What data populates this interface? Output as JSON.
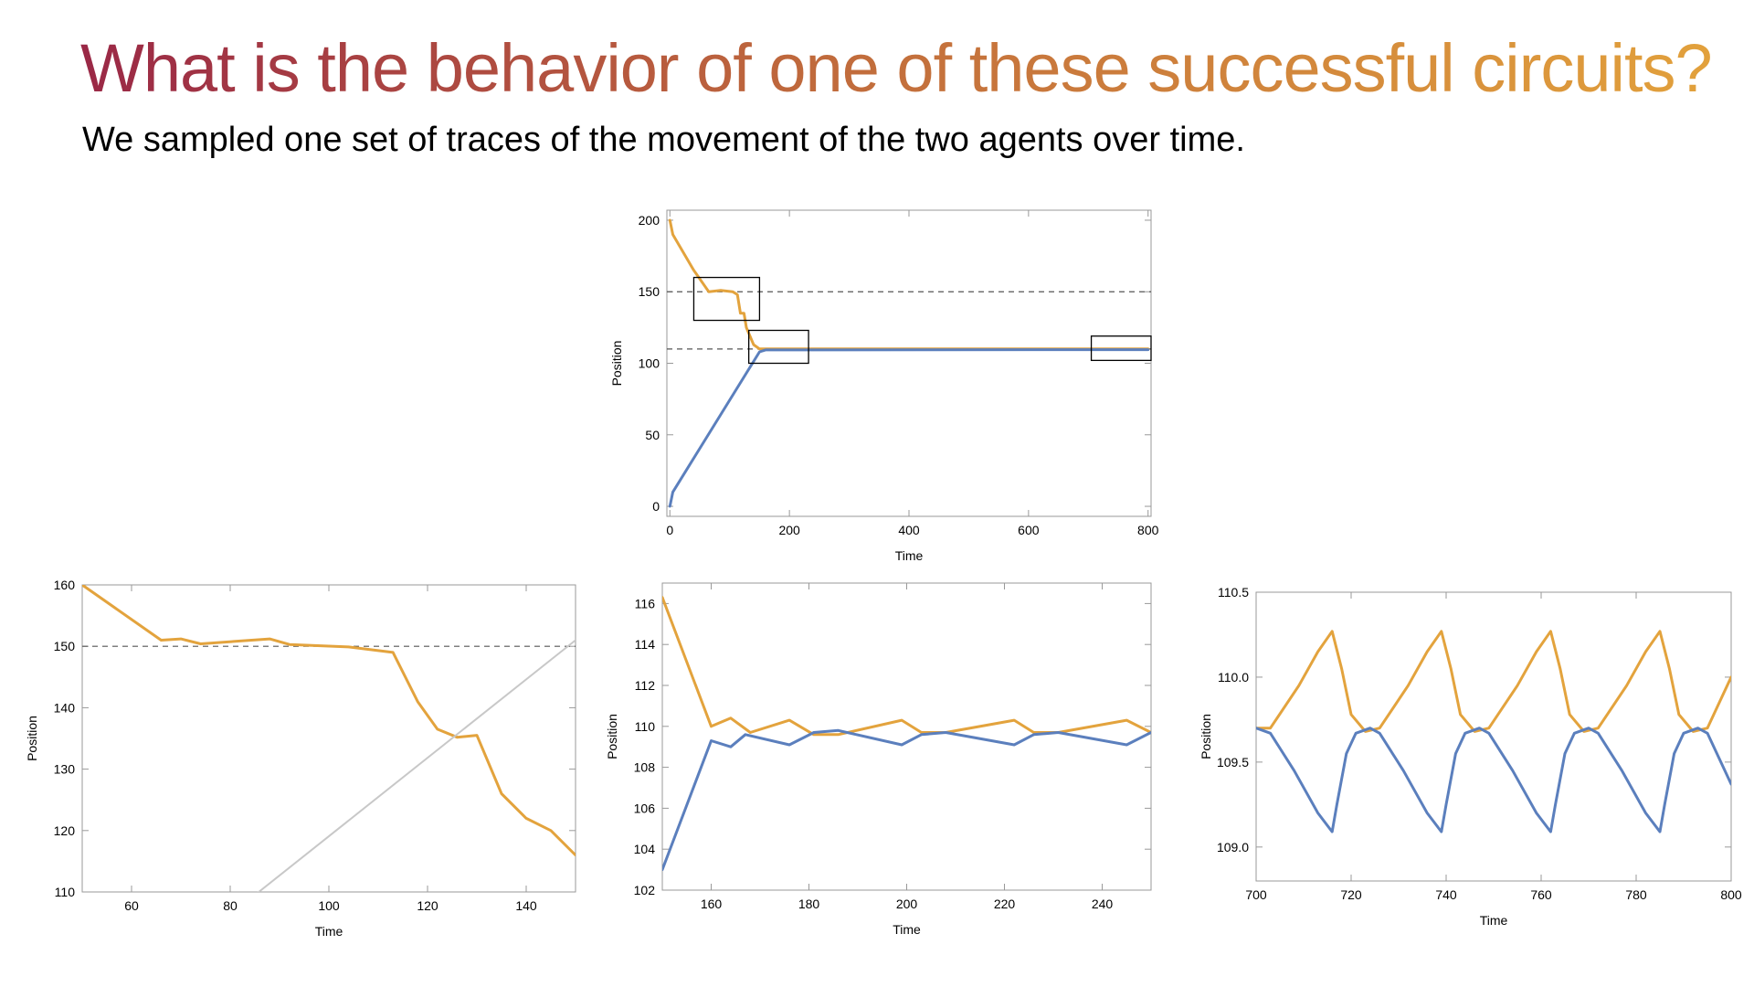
{
  "slide": {
    "title": "What is the behavior of one of these successful circuits?",
    "subtitle": "We sampled one set of traces of the movement of the two agents over time."
  },
  "colors": {
    "orange": "#e3a33d",
    "blue": "#5b7fbd",
    "gray": "#c8c8c8",
    "dashed": "#555555"
  },
  "chart_data": [
    {
      "type": "line",
      "xlabel": "Time",
      "ylabel": "Position",
      "xlim": [
        -5,
        805
      ],
      "ylim": [
        -7,
        207
      ],
      "xticks": [
        "0",
        "200",
        "400",
        "600",
        "800"
      ],
      "xtick_values": [
        0,
        200,
        400,
        600,
        800
      ],
      "yticks": [
        "0",
        "50",
        "100",
        "150",
        "200"
      ],
      "ytick_values": [
        0,
        50,
        100,
        150,
        200
      ],
      "hlines": [
        150,
        110
      ],
      "zoom_boxes": [
        {
          "x": [
            40,
            150
          ],
          "y": [
            130,
            160
          ]
        },
        {
          "x": [
            132,
            232
          ],
          "y": [
            100,
            123
          ]
        },
        {
          "x": [
            705,
            805
          ],
          "y": [
            102,
            119
          ]
        }
      ],
      "series": [
        {
          "color": "orange",
          "points": [
            [
              0,
              200
            ],
            [
              5,
              190
            ],
            [
              40,
              165
            ],
            [
              65,
              150
            ],
            [
              85,
              151
            ],
            [
              105,
              150
            ],
            [
              113,
              148
            ],
            [
              118,
              135
            ],
            [
              124,
              135
            ],
            [
              128,
              125
            ],
            [
              140,
              113
            ],
            [
              150,
              110
            ],
            [
              800,
              110
            ]
          ]
        },
        {
          "color": "blue",
          "points": [
            [
              0,
              0
            ],
            [
              5,
              10
            ],
            [
              150,
              108
            ],
            [
              160,
              109.3
            ],
            [
              800,
              109.5
            ]
          ]
        }
      ]
    },
    {
      "type": "line",
      "xlabel": "Time",
      "ylabel": "Position",
      "xlim": [
        50,
        150
      ],
      "ylim": [
        110,
        160
      ],
      "xticks": [
        "60",
        "80",
        "100",
        "120",
        "140"
      ],
      "xtick_values": [
        60,
        80,
        100,
        120,
        140
      ],
      "yticks": [
        "110",
        "120",
        "130",
        "140",
        "150",
        "160"
      ],
      "ytick_values": [
        110,
        120,
        130,
        140,
        150,
        160
      ],
      "hlines": [
        150
      ],
      "series": [
        {
          "color": "orange",
          "points": [
            [
              50,
              160
            ],
            [
              66,
              151
            ],
            [
              70,
              151.2
            ],
            [
              74,
              150.4
            ],
            [
              88,
              151.2
            ],
            [
              92,
              150.3
            ],
            [
              104,
              149.9
            ],
            [
              113,
              149
            ],
            [
              118,
              141
            ],
            [
              122,
              136.5
            ],
            [
              126,
              135.2
            ],
            [
              130,
              135.5
            ],
            [
              135,
              126
            ],
            [
              140,
              122
            ],
            [
              145,
              120
            ],
            [
              150,
              116
            ]
          ]
        },
        {
          "color": "gray",
          "points": [
            [
              85,
              109.5
            ],
            [
              150,
              151
            ]
          ]
        }
      ]
    },
    {
      "type": "line",
      "xlabel": "Time",
      "ylabel": "Position",
      "xlim": [
        150,
        250
      ],
      "ylim": [
        102,
        117
      ],
      "xticks": [
        "160",
        "180",
        "200",
        "220",
        "240"
      ],
      "xtick_values": [
        160,
        180,
        200,
        220,
        240
      ],
      "yticks": [
        "102",
        "104",
        "106",
        "108",
        "110",
        "112",
        "114",
        "116"
      ],
      "ytick_values": [
        102,
        104,
        106,
        108,
        110,
        112,
        114,
        116
      ],
      "hlines": [],
      "series": [
        {
          "color": "orange",
          "points": [
            [
              150,
              116.3
            ],
            [
              160,
              110
            ],
            [
              164,
              110.4
            ],
            [
              168,
              109.7
            ],
            [
              176,
              110.3
            ],
            [
              181,
              109.6
            ],
            [
              186,
              109.6
            ],
            [
              199,
              110.3
            ],
            [
              203,
              109.7
            ],
            [
              208,
              109.7
            ],
            [
              222,
              110.3
            ],
            [
              226,
              109.7
            ],
            [
              231,
              109.7
            ],
            [
              245,
              110.3
            ],
            [
              250,
              109.7
            ]
          ]
        },
        {
          "color": "blue",
          "points": [
            [
              150,
              103
            ],
            [
              160,
              109.3
            ],
            [
              164,
              109
            ],
            [
              167,
              109.6
            ],
            [
              176,
              109.1
            ],
            [
              181,
              109.7
            ],
            [
              186,
              109.8
            ],
            [
              199,
              109.1
            ],
            [
              203,
              109.6
            ],
            [
              208,
              109.7
            ],
            [
              222,
              109.1
            ],
            [
              226,
              109.6
            ],
            [
              231,
              109.7
            ],
            [
              245,
              109.1
            ],
            [
              250,
              109.7
            ]
          ]
        }
      ]
    },
    {
      "type": "line",
      "xlabel": "Time",
      "ylabel": "Position",
      "xlim": [
        700,
        800
      ],
      "ylim": [
        108.8,
        110.5
      ],
      "xticks": [
        "700",
        "720",
        "740",
        "760",
        "780",
        "800"
      ],
      "xtick_values": [
        700,
        720,
        740,
        760,
        780,
        800
      ],
      "yticks": [
        "109.0",
        "109.5",
        "110.0",
        "110.5"
      ],
      "ytick_values": [
        109,
        109.5,
        110,
        110.5
      ],
      "hlines": [],
      "series": [
        {
          "color": "orange",
          "points": [
            [
              700,
              109.7
            ],
            [
              703,
              109.7
            ],
            [
              709,
              109.95
            ],
            [
              713,
              110.15
            ],
            [
              716,
              110.27
            ],
            [
              718,
              110.05
            ],
            [
              720,
              109.78
            ],
            [
              723,
              109.68
            ],
            [
              726,
              109.7
            ],
            [
              732,
              109.95
            ],
            [
              736,
              110.15
            ],
            [
              739,
              110.27
            ],
            [
              741,
              110.05
            ],
            [
              743,
              109.78
            ],
            [
              746,
              109.68
            ],
            [
              749,
              109.7
            ],
            [
              755,
              109.95
            ],
            [
              759,
              110.15
            ],
            [
              762,
              110.27
            ],
            [
              764,
              110.05
            ],
            [
              766,
              109.78
            ],
            [
              769,
              109.68
            ],
            [
              772,
              109.7
            ],
            [
              778,
              109.95
            ],
            [
              782,
              110.15
            ],
            [
              785,
              110.27
            ],
            [
              787,
              110.05
            ],
            [
              789,
              109.78
            ],
            [
              792,
              109.68
            ],
            [
              795,
              109.7
            ],
            [
              800,
              110
            ]
          ]
        },
        {
          "color": "blue",
          "points": [
            [
              700,
              109.7
            ],
            [
              703,
              109.67
            ],
            [
              708,
              109.45
            ],
            [
              713,
              109.2
            ],
            [
              716,
              109.09
            ],
            [
              717,
              109.25
            ],
            [
              719,
              109.55
            ],
            [
              721,
              109.67
            ],
            [
              724,
              109.7
            ],
            [
              726,
              109.67
            ],
            [
              731,
              109.45
            ],
            [
              736,
              109.2
            ],
            [
              739,
              109.09
            ],
            [
              740,
              109.25
            ],
            [
              742,
              109.55
            ],
            [
              744,
              109.67
            ],
            [
              747,
              109.7
            ],
            [
              749,
              109.67
            ],
            [
              754,
              109.45
            ],
            [
              759,
              109.2
            ],
            [
              762,
              109.09
            ],
            [
              763,
              109.25
            ],
            [
              765,
              109.55
            ],
            [
              767,
              109.67
            ],
            [
              770,
              109.7
            ],
            [
              772,
              109.67
            ],
            [
              777,
              109.45
            ],
            [
              782,
              109.2
            ],
            [
              785,
              109.09
            ],
            [
              786,
              109.25
            ],
            [
              788,
              109.55
            ],
            [
              790,
              109.67
            ],
            [
              793,
              109.7
            ],
            [
              795,
              109.67
            ],
            [
              800,
              109.37
            ]
          ]
        }
      ]
    }
  ]
}
